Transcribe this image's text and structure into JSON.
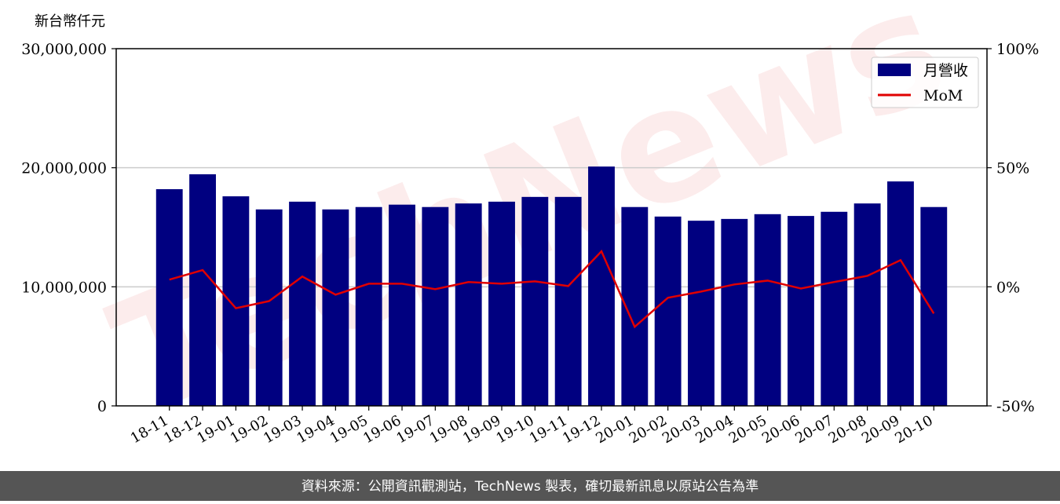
{
  "chart_data": {
    "type": "bar",
    "y_axis_label": "新台幣仟元",
    "watermark": "TechNews",
    "footer": "資料來源：公開資訊觀測站，TechNews 製表，確切最新訊息以原站公告為準",
    "categories": [
      "18-11",
      "18-12",
      "19-01",
      "19-02",
      "19-03",
      "19-04",
      "19-05",
      "19-06",
      "19-07",
      "19-08",
      "19-09",
      "19-10",
      "19-11",
      "19-12",
      "20-01",
      "20-02",
      "20-03",
      "20-04",
      "20-05",
      "20-06",
      "20-07",
      "20-08",
      "20-09",
      "20-10"
    ],
    "series": [
      {
        "name": "月營收",
        "type": "bar",
        "color": "#000080",
        "values": [
          18200000,
          19450000,
          17600000,
          16500000,
          17150000,
          16500000,
          16700000,
          16900000,
          16700000,
          17000000,
          17150000,
          17550000,
          17550000,
          20100000,
          16700000,
          15900000,
          15550000,
          15700000,
          16100000,
          15950000,
          16300000,
          17000000,
          18850000,
          16700000
        ]
      },
      {
        "name": "MoM",
        "type": "line",
        "color": "#e00000",
        "axis": "y2",
        "values": [
          3.0,
          7.0,
          -9.0,
          -6.0,
          4.3,
          -3.3,
          1.3,
          1.3,
          -1.0,
          2.0,
          1.3,
          2.3,
          0.3,
          14.9,
          -16.8,
          -4.6,
          -2.0,
          1.0,
          2.6,
          -0.7,
          2.0,
          4.6,
          11.2,
          -11.2
        ]
      }
    ],
    "ylim": [
      0,
      30000000
    ],
    "yticks": [
      0,
      {
        "value": 10000000,
        "label": "10,000,000"
      },
      {
        "value": 20000000,
        "label": "20,000,000"
      },
      {
        "value": 30000000,
        "label": "30,000,000"
      }
    ],
    "y2lim": [
      -50,
      100
    ],
    "y2ticks": [
      {
        "value": -50,
        "label": "-50%"
      },
      {
        "value": 0,
        "label": "0%"
      },
      {
        "value": 50,
        "label": "50%"
      },
      {
        "value": 100,
        "label": "100%"
      }
    ],
    "grid": true,
    "legend": "upper right"
  }
}
